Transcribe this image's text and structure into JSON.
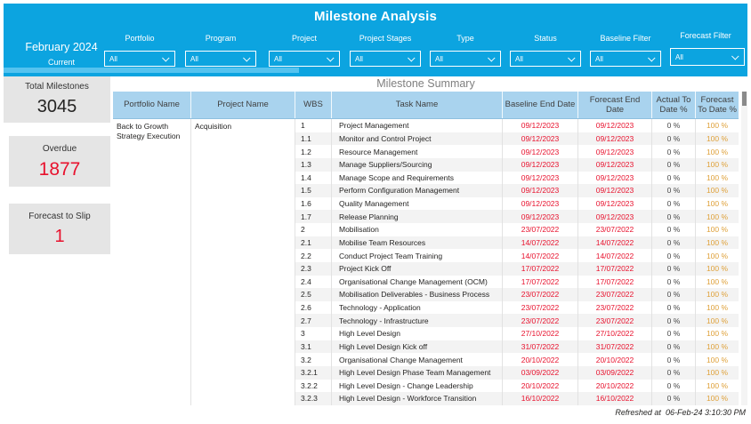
{
  "colors": {
    "accent": "#0CA4E0",
    "accent-light": "#55C3EF",
    "table-header": "#A9D3EE",
    "red": "#E8112D",
    "amber": "#DFA13A",
    "card": "#E5E5E5",
    "stripe": "#F3F3F3"
  },
  "header": {
    "title": "Milestone Analysis",
    "date_slicer": {
      "month": "February 2024",
      "mode": "Current"
    },
    "filters": [
      {
        "label": "Portfolio",
        "value": "All"
      },
      {
        "label": "Program",
        "value": "All"
      },
      {
        "label": "Project",
        "value": "All"
      },
      {
        "label": "Project Stages",
        "value": "All"
      },
      {
        "label": "Type",
        "value": "All"
      },
      {
        "label": "Status",
        "value": "All"
      },
      {
        "label": "Baseline Filter",
        "value": "All"
      },
      {
        "label": "Forecast Filter",
        "value": "All"
      }
    ]
  },
  "kpis": [
    {
      "label": "Total Milestones",
      "value": "3045",
      "status": "normal"
    },
    {
      "label": "Overdue",
      "value": "1877",
      "status": "alert"
    },
    {
      "label": "Forecast to Slip",
      "value": "1",
      "status": "alert"
    }
  ],
  "table": {
    "title": "Milestone Summary",
    "columns": [
      "Portfolio Name",
      "Project Name",
      "WBS",
      "Task Name",
      "Baseline End Date",
      "Forecast End Date",
      "Actual To Date %",
      "Forecast To Date %"
    ],
    "portfolio_name": "Back to Growth Strategy Execution",
    "project_name": "Acquisition",
    "rows": [
      {
        "wbs": "1",
        "task": "Project Management",
        "baseline": "09/12/2023",
        "forecast": "09/12/2023",
        "actual_pct": "0 %",
        "forecast_pct": "100 %"
      },
      {
        "wbs": "1.1",
        "task": "Monitor and Control Project",
        "baseline": "09/12/2023",
        "forecast": "09/12/2023",
        "actual_pct": "0 %",
        "forecast_pct": "100 %"
      },
      {
        "wbs": "1.2",
        "task": "Resource Management",
        "baseline": "09/12/2023",
        "forecast": "09/12/2023",
        "actual_pct": "0 %",
        "forecast_pct": "100 %"
      },
      {
        "wbs": "1.3",
        "task": "Manage Suppliers/Sourcing",
        "baseline": "09/12/2023",
        "forecast": "09/12/2023",
        "actual_pct": "0 %",
        "forecast_pct": "100 %"
      },
      {
        "wbs": "1.4",
        "task": "Manage Scope and Requirements",
        "baseline": "09/12/2023",
        "forecast": "09/12/2023",
        "actual_pct": "0 %",
        "forecast_pct": "100 %"
      },
      {
        "wbs": "1.5",
        "task": "Perform Configuration Management",
        "baseline": "09/12/2023",
        "forecast": "09/12/2023",
        "actual_pct": "0 %",
        "forecast_pct": "100 %"
      },
      {
        "wbs": "1.6",
        "task": "Quality Management",
        "baseline": "09/12/2023",
        "forecast": "09/12/2023",
        "actual_pct": "0 %",
        "forecast_pct": "100 %"
      },
      {
        "wbs": "1.7",
        "task": "Release Planning",
        "baseline": "09/12/2023",
        "forecast": "09/12/2023",
        "actual_pct": "0 %",
        "forecast_pct": "100 %"
      },
      {
        "wbs": "2",
        "task": "Mobilisation",
        "baseline": "23/07/2022",
        "forecast": "23/07/2022",
        "actual_pct": "0 %",
        "forecast_pct": "100 %"
      },
      {
        "wbs": "2.1",
        "task": "Mobilise Team Resources",
        "baseline": "14/07/2022",
        "forecast": "14/07/2022",
        "actual_pct": "0 %",
        "forecast_pct": "100 %"
      },
      {
        "wbs": "2.2",
        "task": "Conduct Project Team Training",
        "baseline": "14/07/2022",
        "forecast": "14/07/2022",
        "actual_pct": "0 %",
        "forecast_pct": "100 %"
      },
      {
        "wbs": "2.3",
        "task": "Project Kick Off",
        "baseline": "17/07/2022",
        "forecast": "17/07/2022",
        "actual_pct": "0 %",
        "forecast_pct": "100 %"
      },
      {
        "wbs": "2.4",
        "task": "Organisational Change Management (OCM)",
        "baseline": "17/07/2022",
        "forecast": "17/07/2022",
        "actual_pct": "0 %",
        "forecast_pct": "100 %"
      },
      {
        "wbs": "2.5",
        "task": "Mobilisation Deliverables - Business Process",
        "baseline": "23/07/2022",
        "forecast": "23/07/2022",
        "actual_pct": "0 %",
        "forecast_pct": "100 %"
      },
      {
        "wbs": "2.6",
        "task": "Technology - Application",
        "baseline": "23/07/2022",
        "forecast": "23/07/2022",
        "actual_pct": "0 %",
        "forecast_pct": "100 %"
      },
      {
        "wbs": "2.7",
        "task": "Technology - Infrastructure",
        "baseline": "23/07/2022",
        "forecast": "23/07/2022",
        "actual_pct": "0 %",
        "forecast_pct": "100 %"
      },
      {
        "wbs": "3",
        "task": "High Level Design",
        "baseline": "27/10/2022",
        "forecast": "27/10/2022",
        "actual_pct": "0 %",
        "forecast_pct": "100 %"
      },
      {
        "wbs": "3.1",
        "task": "High Level Design Kick off",
        "baseline": "31/07/2022",
        "forecast": "31/07/2022",
        "actual_pct": "0 %",
        "forecast_pct": "100 %"
      },
      {
        "wbs": "3.2",
        "task": "Organisational Change Management",
        "baseline": "20/10/2022",
        "forecast": "20/10/2022",
        "actual_pct": "0 %",
        "forecast_pct": "100 %"
      },
      {
        "wbs": "3.2.1",
        "task": "High Level Design Phase Team Management",
        "baseline": "03/09/2022",
        "forecast": "03/09/2022",
        "actual_pct": "0 %",
        "forecast_pct": "100 %"
      },
      {
        "wbs": "3.2.2",
        "task": "High Level Design - Change Leadership",
        "baseline": "20/10/2022",
        "forecast": "20/10/2022",
        "actual_pct": "0 %",
        "forecast_pct": "100 %"
      },
      {
        "wbs": "3.2.3",
        "task": "High Level Design - Workforce Transition",
        "baseline": "16/10/2022",
        "forecast": "16/10/2022",
        "actual_pct": "0 %",
        "forecast_pct": "100 %"
      }
    ]
  },
  "footer": {
    "refreshed": "Refreshed at  06-Feb-24 3:10:30 PM"
  }
}
